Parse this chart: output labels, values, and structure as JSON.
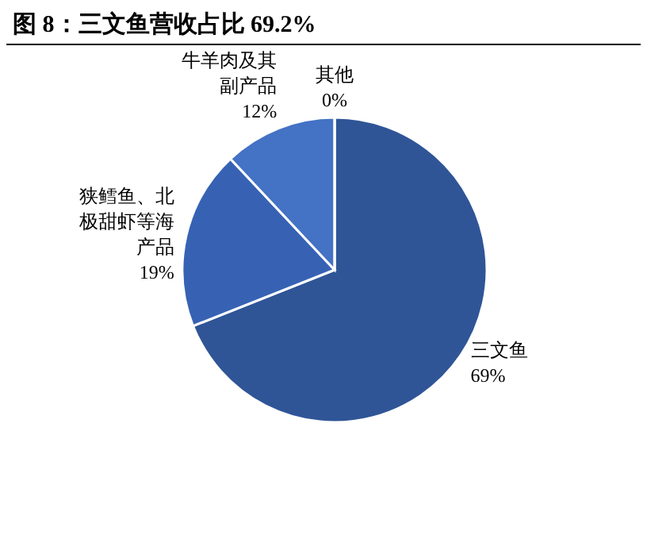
{
  "chart_data": {
    "type": "pie",
    "title": "图 8：三文鱼营收占比 69.2%",
    "categories": [
      "三文鱼",
      "狭鳕鱼、北极甜虾等海产品",
      "牛羊肉及其副产品",
      "其他"
    ],
    "values": [
      69,
      19,
      12,
      0
    ],
    "value_labels": [
      "69%",
      "19%",
      "12%",
      "0%"
    ],
    "colors": [
      "#2f5597",
      "#3762b4",
      "#4472c4",
      "#5b8bd6"
    ]
  }
}
